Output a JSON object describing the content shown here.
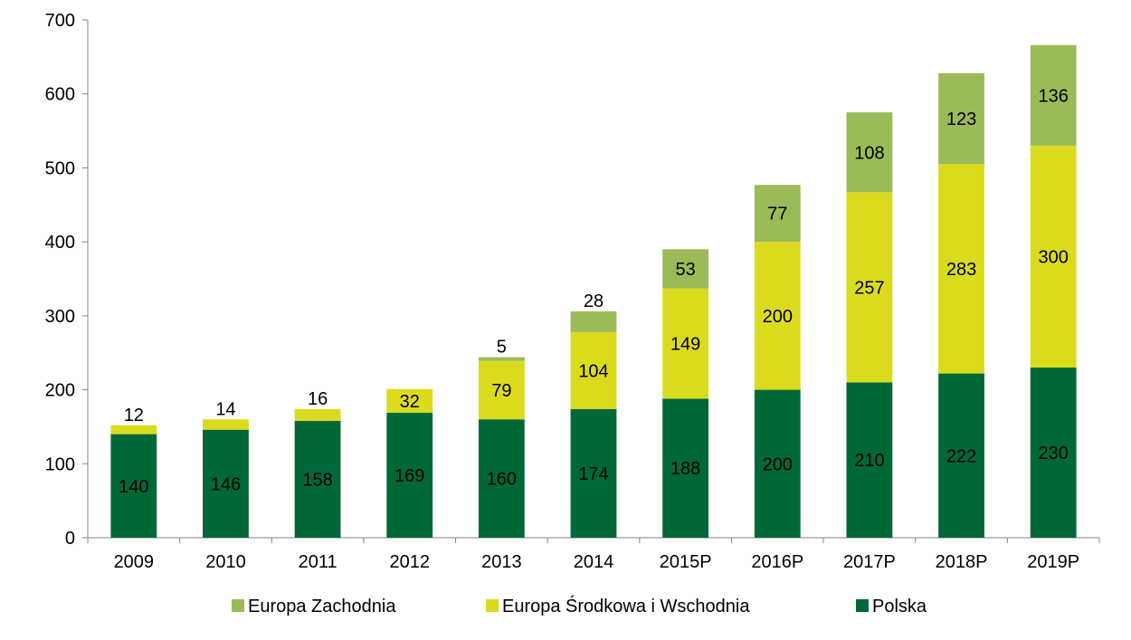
{
  "chart_data": {
    "type": "bar",
    "stacked": true,
    "categories": [
      "2009",
      "2010",
      "2011",
      "2012",
      "2013",
      "2014",
      "2015P",
      "2016P",
      "2017P",
      "2018P",
      "2019P"
    ],
    "series": [
      {
        "name": "Polska",
        "values": [
          140,
          146,
          158,
          169,
          160,
          174,
          188,
          200,
          210,
          222,
          230
        ],
        "color": "#006837"
      },
      {
        "name": "Europa Środkowa i Wschodnia",
        "values": [
          12,
          14,
          16,
          32,
          79,
          104,
          149,
          200,
          257,
          283,
          300
        ],
        "color": "#dbdb1e"
      },
      {
        "name": "Europa Zachodnia",
        "values": [
          0,
          0,
          0,
          0,
          5,
          28,
          53,
          77,
          108,
          123,
          136
        ],
        "color": "#9bbb59"
      }
    ],
    "legend_order": [
      "Europa Zachodnia",
      "Europa Środkowa i Wschodnia",
      "Polska"
    ],
    "ylim": [
      0,
      700
    ],
    "yticks": [
      0,
      100,
      200,
      300,
      400,
      500,
      600,
      700
    ],
    "xlabel": "",
    "ylabel": "",
    "title": "",
    "grid": false,
    "legend_position": "bottom"
  }
}
